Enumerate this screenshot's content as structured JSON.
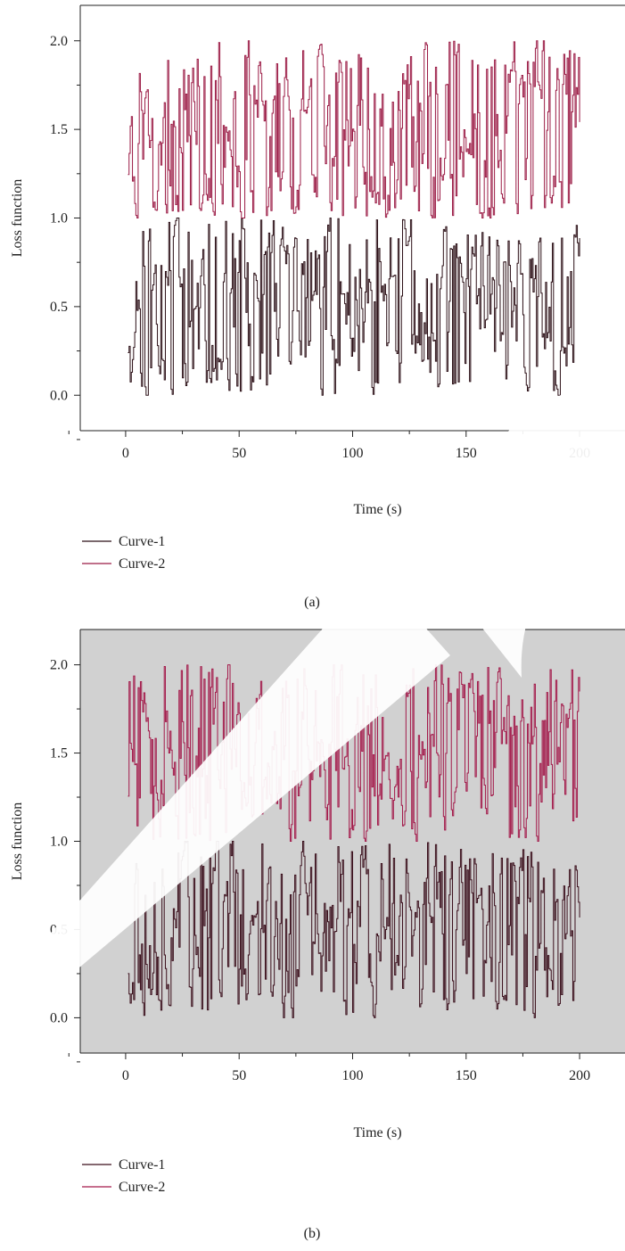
{
  "chart_data": [
    {
      "panel": "(a)",
      "type": "line",
      "step": true,
      "title": "",
      "xlabel": "Time (s)",
      "ylabel": "Loss function",
      "xlim": [
        -20,
        220
      ],
      "ylim": [
        -0.2,
        2.2
      ],
      "xticks": [
        0,
        50,
        100,
        150,
        200
      ],
      "xtick_labels": [
        "0",
        "50",
        "100",
        "150",
        "200"
      ],
      "yticks": [
        0.0,
        0.5,
        1.0,
        1.5,
        2.0
      ],
      "ytick_labels": [
        "0.0",
        "0.5",
        "1.0",
        "1.5",
        "2.0"
      ],
      "grid": false,
      "background": "#ffffff",
      "legend_position": "bottom-left",
      "series": [
        {
          "name": "Curve-1",
          "color": "#2b0f16",
          "x_start": 1,
          "x_end": 200,
          "y_range": [
            0.0,
            1.0
          ],
          "seed": 11
        },
        {
          "name": "Curve-2",
          "color": "#9b1b45",
          "x_start": 1,
          "x_end": 200,
          "y_range": [
            1.0,
            2.0
          ],
          "seed": 23
        }
      ]
    },
    {
      "panel": "(b)",
      "type": "line",
      "step": true,
      "title": "",
      "xlabel": "Time (s)",
      "ylabel": "Loss function",
      "xlim": [
        -20,
        220
      ],
      "ylim": [
        -0.2,
        2.2
      ],
      "xticks": [
        0,
        50,
        100,
        150,
        200
      ],
      "xtick_labels": [
        "0",
        "50",
        "100",
        "150",
        "200"
      ],
      "yticks": [
        0.0,
        0.5,
        1.0,
        1.5,
        2.0
      ],
      "ytick_labels": [
        "0.0",
        "0.5",
        "1.0",
        "1.5",
        "2.0"
      ],
      "grid": false,
      "background": "#d1d1d1",
      "legend_position": "bottom-left",
      "series": [
        {
          "name": "Curve-1",
          "color": "#3a0e1b",
          "x_start": 1,
          "x_end": 200,
          "y_range": [
            0.0,
            1.0
          ],
          "seed": 37
        },
        {
          "name": "Curve-2",
          "color": "#a3194a",
          "x_start": 1,
          "x_end": 200,
          "y_range": [
            1.0,
            2.0
          ],
          "seed": 51
        }
      ]
    }
  ]
}
